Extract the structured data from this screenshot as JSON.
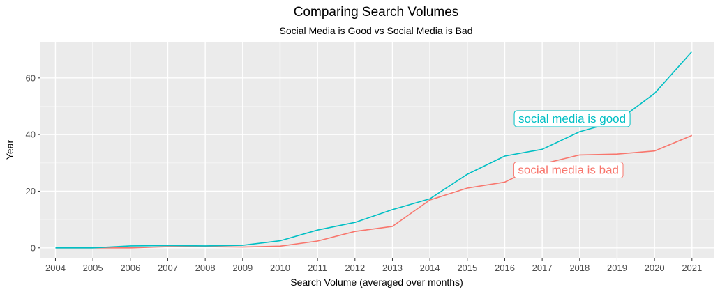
{
  "chart_data": {
    "type": "line",
    "title": "Comparing Search Volumes",
    "subtitle": "Social Media is Good vs Social Media is Bad",
    "xlabel": "Search Volume (averaged over months)",
    "ylabel": "Year",
    "x": [
      2004,
      2005,
      2006,
      2007,
      2008,
      2009,
      2010,
      2011,
      2012,
      2013,
      2014,
      2015,
      2016,
      2017,
      2018,
      2019,
      2020,
      2021
    ],
    "xlim": [
      2003.6,
      2021.6
    ],
    "ylim": [
      -3.5,
      72.5
    ],
    "yticks": [
      0,
      20,
      40,
      60
    ],
    "grid": true,
    "series": [
      {
        "name": "social media is good",
        "color": "#00BFC4",
        "values": [
          0,
          0,
          0.7,
          0.8,
          0.7,
          0.9,
          2.5,
          6.3,
          9.0,
          13.5,
          17.3,
          26.0,
          32.4,
          34.8,
          41.0,
          44.7,
          54.5,
          69.3
        ],
        "label_x": 2017.8,
        "label_y": 45.7
      },
      {
        "name": "social media is bad",
        "color": "#F8766D",
        "values": [
          0,
          0,
          0,
          0.4,
          0.4,
          0.3,
          0.6,
          2.4,
          5.8,
          7.6,
          16.9,
          21.1,
          23.2,
          29.6,
          32.8,
          33.1,
          34.2,
          39.7
        ],
        "label_x": 2017.7,
        "label_y": 27.6
      }
    ]
  }
}
